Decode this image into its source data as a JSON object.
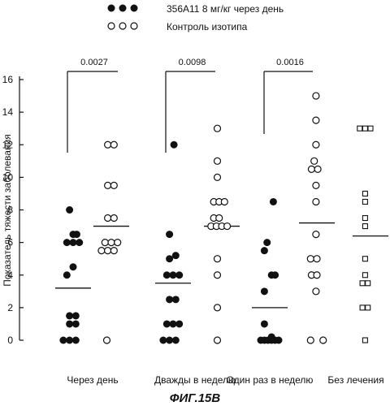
{
  "chart_data": {
    "type": "scatter",
    "title": "ФИГ.15B",
    "ylabel": "Показатель тяжести заболевания",
    "xlabel": "",
    "ylim": [
      0,
      16
    ],
    "yticks": [
      "0",
      "2",
      "4",
      "6",
      "8",
      "10",
      "12",
      "14",
      "16"
    ],
    "grid": false,
    "legend_position": "top-left",
    "legend": [
      {
        "label": "356А11 8 мг/кг через день",
        "marker": "filled-circle"
      },
      {
        "label": "Контроль изотипа",
        "marker": "open-circle"
      }
    ],
    "categories": [
      "Через день",
      "Дважды в неделю",
      "Один раз в неделю",
      "Без лечения"
    ],
    "groups": [
      {
        "marker": "filled-circle",
        "mean": 3.2,
        "points": [
          [
            -0.55,
            0
          ],
          [
            -0.2,
            0
          ],
          [
            0.15,
            0
          ],
          [
            -0.2,
            1
          ],
          [
            0.15,
            1
          ],
          [
            -0.2,
            1.5
          ],
          [
            0.15,
            1.5
          ],
          [
            -0.35,
            4
          ],
          [
            0,
            4.5
          ],
          [
            -0.35,
            6
          ],
          [
            0,
            6
          ],
          [
            0.35,
            6
          ],
          [
            0,
            6.5
          ],
          [
            0.2,
            6.5
          ],
          [
            -0.2,
            8
          ]
        ]
      },
      {
        "marker": "open-circle",
        "mean": 7.0,
        "points": [
          [
            -0.25,
            0
          ],
          [
            -0.55,
            5.5
          ],
          [
            -0.2,
            5.5
          ],
          [
            0.15,
            5.5
          ],
          [
            -0.35,
            6
          ],
          [
            0,
            6
          ],
          [
            0.35,
            6
          ],
          [
            -0.2,
            7.5
          ],
          [
            0.15,
            7.5
          ],
          [
            -0.2,
            9.5
          ],
          [
            0.15,
            9.5
          ],
          [
            -0.2,
            12
          ],
          [
            0.15,
            12
          ]
        ]
      },
      {
        "marker": "filled-circle",
        "mean": 3.5,
        "points": [
          [
            -0.55,
            0
          ],
          [
            -0.2,
            0
          ],
          [
            0.15,
            0
          ],
          [
            -0.35,
            1
          ],
          [
            0,
            1
          ],
          [
            0.35,
            1
          ],
          [
            -0.2,
            2.5
          ],
          [
            0.15,
            2.5
          ],
          [
            -0.35,
            4
          ],
          [
            0,
            4
          ],
          [
            0.35,
            4
          ],
          [
            -0.2,
            5
          ],
          [
            0.15,
            5.2
          ],
          [
            -0.2,
            6.5
          ],
          [
            0.05,
            12
          ]
        ]
      },
      {
        "marker": "open-circle",
        "mean": 7.0,
        "points": [
          [
            -0.25,
            0
          ],
          [
            -0.25,
            2
          ],
          [
            -0.25,
            4
          ],
          [
            -0.25,
            5
          ],
          [
            -0.6,
            7
          ],
          [
            -0.3,
            7
          ],
          [
            0,
            7
          ],
          [
            0.3,
            7
          ],
          [
            -0.45,
            7.5
          ],
          [
            -0.15,
            7.5
          ],
          [
            -0.45,
            8.5
          ],
          [
            -0.15,
            8.5
          ],
          [
            0.15,
            8.5
          ],
          [
            -0.25,
            10
          ],
          [
            -0.25,
            11
          ],
          [
            -0.25,
            13
          ]
        ]
      },
      {
        "marker": "filled-circle",
        "mean": 2.0,
        "points": [
          [
            -0.5,
            0
          ],
          [
            -0.3,
            0
          ],
          [
            -0.1,
            0
          ],
          [
            0.1,
            0
          ],
          [
            0.3,
            0
          ],
          [
            0.5,
            0
          ],
          [
            0.1,
            0.2
          ],
          [
            -0.3,
            1
          ],
          [
            -0.3,
            3
          ],
          [
            0.1,
            4
          ],
          [
            0.3,
            4
          ],
          [
            -0.3,
            5.5
          ],
          [
            -0.15,
            6
          ],
          [
            0.2,
            8.5
          ]
        ]
      },
      {
        "marker": "open-circle",
        "mean": 7.2,
        "points": [
          [
            -0.35,
            0
          ],
          [
            0.35,
            0
          ],
          [
            -0.05,
            3
          ],
          [
            -0.3,
            4
          ],
          [
            0,
            4
          ],
          [
            -0.35,
            5
          ],
          [
            0,
            5
          ],
          [
            -0.05,
            6.5
          ],
          [
            -0.05,
            8.5
          ],
          [
            -0.05,
            9.5
          ],
          [
            -0.3,
            10.5
          ],
          [
            0.05,
            10.5
          ],
          [
            -0.15,
            11
          ],
          [
            -0.05,
            12
          ],
          [
            -0.05,
            13.5
          ],
          [
            -0.05,
            15
          ]
        ]
      },
      {
        "marker": "open-square",
        "mean": 6.4,
        "points": [
          [
            -0.3,
            0
          ],
          [
            -0.45,
            2
          ],
          [
            -0.15,
            2
          ],
          [
            -0.45,
            3.5
          ],
          [
            -0.15,
            3.5
          ],
          [
            -0.3,
            4
          ],
          [
            -0.3,
            5
          ],
          [
            -0.3,
            7
          ],
          [
            -0.3,
            7.5
          ],
          [
            -0.3,
            8.5
          ],
          [
            -0.3,
            9
          ],
          [
            -0.6,
            13
          ],
          [
            -0.3,
            13
          ],
          [
            0,
            13
          ]
        ]
      }
    ],
    "comparisons": [
      {
        "label": "0.0027",
        "from_group": 0,
        "to_group": 1
      },
      {
        "label": "0.0098",
        "from_group": 2,
        "to_group": 3
      },
      {
        "label": "0.0016",
        "from_group": 4,
        "to_group": 5
      }
    ]
  }
}
